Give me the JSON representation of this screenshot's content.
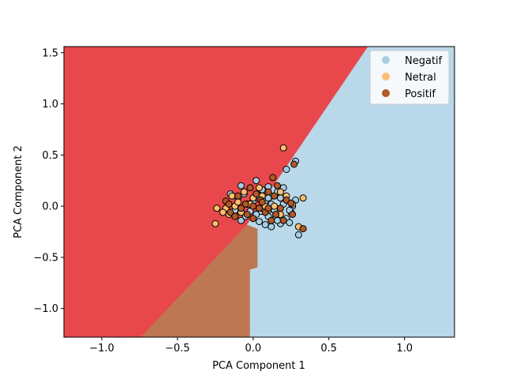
{
  "chart_data": {
    "type": "scatter",
    "title": "",
    "xlabel": "PCA Component 1",
    "ylabel": "PCA Component 2",
    "xlim": [
      -1.25,
      1.33
    ],
    "ylim": [
      -1.28,
      1.56
    ],
    "xticks": [
      -1.0,
      -0.5,
      0.0,
      0.5,
      1.0
    ],
    "xtick_labels": [
      "−1.0",
      "−0.5",
      "0.0",
      "0.5",
      "1.0"
    ],
    "yticks": [
      -1.0,
      -0.5,
      0.0,
      0.5,
      1.0,
      1.5
    ],
    "ytick_labels": [
      "−1.0",
      "−0.5",
      "0.0",
      "0.5",
      "1.0",
      "1.5"
    ],
    "grid": false,
    "legend_position": "top-right",
    "regions": [
      {
        "label": "Positif",
        "color": "#e8474b",
        "polygon": [
          [
            -1.25,
            1.56
          ],
          [
            0.76,
            1.56
          ],
          [
            -0.04,
            -0.18
          ],
          [
            -0.74,
            -1.28
          ],
          [
            -1.25,
            -1.28
          ]
        ]
      },
      {
        "label": "Netral",
        "color": "#bd7752",
        "polygon": [
          [
            -0.74,
            -1.28
          ],
          [
            -0.04,
            -0.18
          ],
          [
            0.03,
            -0.22
          ],
          [
            0.03,
            -0.6
          ],
          [
            -0.02,
            -0.62
          ],
          [
            -0.02,
            -1.28
          ]
        ]
      },
      {
        "label": "Negatif",
        "color": "#b9d8e9",
        "polygon": [
          [
            0.76,
            1.56
          ],
          [
            1.33,
            1.56
          ],
          [
            1.33,
            -1.28
          ],
          [
            -0.02,
            -1.28
          ],
          [
            -0.02,
            -0.62
          ],
          [
            0.03,
            -0.6
          ],
          [
            0.03,
            -0.22
          ],
          [
            -0.04,
            -0.18
          ]
        ]
      }
    ],
    "series": [
      {
        "name": "Negatif",
        "color": "#a6cee3",
        "points": [
          [
            0.28,
            0.44
          ],
          [
            0.22,
            0.36
          ],
          [
            0.3,
            -0.28
          ],
          [
            0.02,
            0.25
          ],
          [
            0.12,
            -0.2
          ],
          [
            0.18,
            -0.17
          ],
          [
            0.25,
            -0.06
          ],
          [
            0.28,
            0.06
          ],
          [
            0.1,
            0.19
          ],
          [
            -0.15,
            0.12
          ],
          [
            -0.08,
            0.2
          ],
          [
            0.05,
            -0.05
          ],
          [
            0.15,
            -0.1
          ],
          [
            0.2,
            0.02
          ],
          [
            -0.05,
            -0.1
          ],
          [
            0.08,
            0.05
          ],
          [
            0.12,
            0.1
          ],
          [
            0.04,
            -0.15
          ],
          [
            0.22,
            -0.12
          ],
          [
            -0.1,
            0.08
          ],
          [
            0.16,
            0.14
          ],
          [
            0.06,
            0.16
          ],
          [
            0.0,
            0.05
          ],
          [
            -0.02,
            -0.05
          ],
          [
            0.14,
            -0.04
          ],
          [
            0.1,
            -0.1
          ],
          [
            0.24,
            -0.16
          ],
          [
            0.18,
            0.08
          ],
          [
            -0.12,
            -0.04
          ],
          [
            0.02,
            -0.08
          ],
          [
            0.26,
            0.0
          ],
          [
            0.08,
            -0.18
          ],
          [
            -0.06,
            0.12
          ],
          [
            0.2,
            0.18
          ],
          [
            0.12,
            0.02
          ],
          [
            -0.04,
            0.02
          ],
          [
            0.06,
            -0.02
          ],
          [
            0.04,
            0.1
          ],
          [
            -0.08,
            -0.14
          ],
          [
            0.1,
            0.08
          ],
          [
            0.16,
            -0.14
          ],
          [
            0.24,
            -0.04
          ]
        ]
      },
      {
        "name": "Netral",
        "color": "#fdbf6f",
        "points": [
          [
            0.2,
            0.57
          ],
          [
            0.33,
            0.08
          ],
          [
            -0.25,
            -0.17
          ],
          [
            -0.24,
            -0.02
          ],
          [
            -0.18,
            -0.02
          ],
          [
            -0.12,
            0.0
          ],
          [
            -0.06,
            0.14
          ],
          [
            0.0,
            0.08
          ],
          [
            0.18,
            0.14
          ],
          [
            0.3,
            -0.2
          ],
          [
            -0.16,
            -0.08
          ],
          [
            0.06,
            0.1
          ],
          [
            -0.02,
            0.02
          ],
          [
            0.14,
            0.0
          ],
          [
            0.22,
            0.1
          ],
          [
            -0.1,
            0.04
          ],
          [
            -0.2,
            -0.06
          ],
          [
            0.1,
            -0.04
          ],
          [
            0.04,
            0.18
          ],
          [
            -0.08,
            -0.06
          ],
          [
            0.18,
            -0.08
          ],
          [
            0.08,
            0.0
          ],
          [
            -0.14,
            0.1
          ],
          [
            0.26,
            0.02
          ]
        ]
      },
      {
        "name": "Positif",
        "color": "#b15928",
        "points": [
          [
            0.13,
            0.28
          ],
          [
            0.27,
            0.41
          ],
          [
            0.33,
            -0.22
          ],
          [
            0.22,
            0.06
          ],
          [
            0.25,
            0.03
          ],
          [
            0.2,
            -0.14
          ],
          [
            0.15,
            -0.08
          ],
          [
            0.05,
            0.06
          ],
          [
            -0.05,
            0.02
          ],
          [
            -0.1,
            0.1
          ],
          [
            -0.15,
            -0.06
          ],
          [
            -0.18,
            0.05
          ],
          [
            0.0,
            -0.12
          ],
          [
            0.1,
            0.14
          ],
          [
            0.16,
            0.2
          ],
          [
            0.08,
            -0.06
          ],
          [
            0.02,
            0.12
          ],
          [
            -0.08,
            -0.02
          ],
          [
            -0.12,
            -0.1
          ],
          [
            0.12,
            -0.14
          ],
          [
            0.26,
            -0.08
          ],
          [
            0.04,
            -0.02
          ],
          [
            -0.02,
            0.18
          ],
          [
            0.18,
            -0.02
          ],
          [
            0.06,
            0.04
          ],
          [
            -0.04,
            -0.08
          ],
          [
            0.14,
            0.1
          ],
          [
            -0.16,
            0.02
          ],
          [
            0.0,
            0.0
          ],
          [
            0.1,
            -0.02
          ]
        ]
      }
    ]
  }
}
